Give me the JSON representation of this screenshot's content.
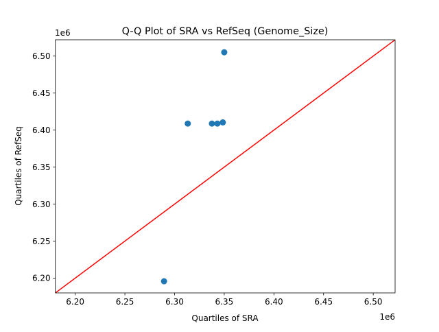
{
  "chart_data": {
    "type": "scatter",
    "title": "Q-Q Plot of SRA vs RefSeq (Genome_Size)",
    "xlabel": "Quartiles of SRA",
    "ylabel": "Quartiles of RefSeq",
    "x_offset_label": "1e6",
    "y_offset_label": "1e6",
    "xlim": [
      6.18,
      6.522
    ],
    "ylim": [
      6.18,
      6.522
    ],
    "xticks": [
      "6.20",
      "6.25",
      "6.30",
      "6.35",
      "6.40",
      "6.45",
      "6.50"
    ],
    "yticks": [
      "6.20",
      "6.25",
      "6.30",
      "6.35",
      "6.40",
      "6.45",
      "6.50"
    ],
    "grid": false,
    "point_color": "#1f77b4",
    "line_color": "#ff0000",
    "reference_line": "y = x",
    "points": [
      {
        "x": 6.2894,
        "y": 6.1957
      },
      {
        "x": 6.3133,
        "y": 6.4088
      },
      {
        "x": 6.3376,
        "y": 6.4088
      },
      {
        "x": 6.3431,
        "y": 6.4088
      },
      {
        "x": 6.3486,
        "y": 6.4104
      },
      {
        "x": 6.35,
        "y": 6.5051
      }
    ]
  }
}
